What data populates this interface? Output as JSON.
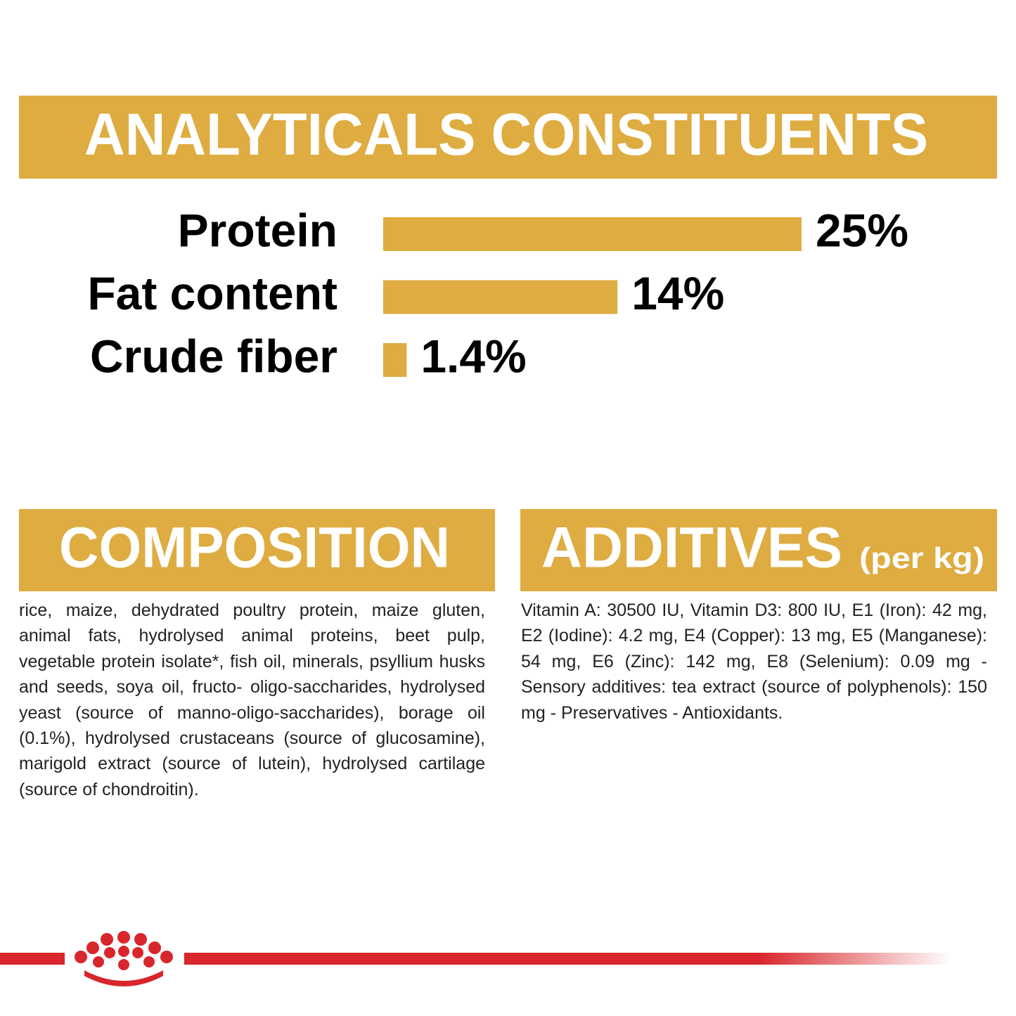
{
  "chart_data": {
    "type": "bar",
    "title": "ANALYTICALS CONSTITUENTS",
    "categories": [
      "Protein",
      "Fat content",
      "Crude fiber"
    ],
    "values": [
      25,
      14,
      1.4
    ],
    "value_labels": [
      "25%",
      "14%",
      "1.4%"
    ],
    "color": "#deac40"
  },
  "composition": {
    "title": "COMPOSITION",
    "text": "rice, maize, dehydrated poultry protein, maize gluten, animal fats, hydrolysed animal proteins, beet pulp, vegetable protein isolate*, fish oil, minerals, psyllium husks and seeds, soya oil, fructo- oligo-saccharides, hydrolysed yeast (source of manno-oligo-saccharides), borage oil (0.1%), hydrolysed crustaceans (source of glucosamine), marigold extract (source of lutein), hydrolysed cartilage (source of chondroitin)."
  },
  "additives": {
    "title": "ADDITIVES",
    "subtitle": "(per kg)",
    "text": "Vitamin A: 30500 IU, Vitamin D3: 800 IU, E1 (Iron): 42 mg, E2 (Iodine): 4.2 mg, E4 (Copper): 13 mg, E5 (Manganese): 54 mg, E6 (Zinc): 142 mg, E8 (Selenium): 0.09 mg - Sensory additives: tea extract (source of polyphenols): 150 mg - Preservatives - Antioxidants."
  }
}
